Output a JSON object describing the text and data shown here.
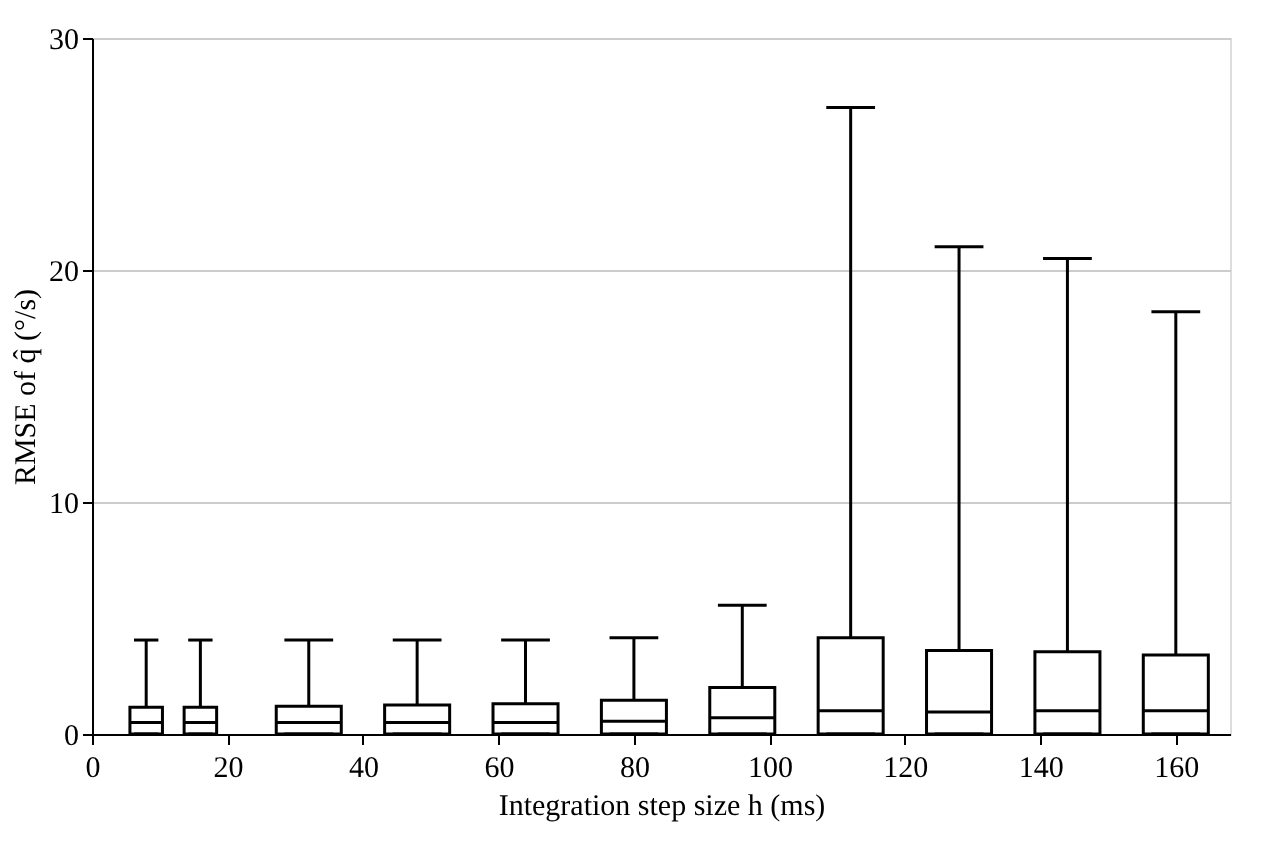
{
  "chart_data": {
    "type": "box",
    "xlabel": "Integration step size h (ms)",
    "ylabel": "RMSE of q̂ (°/s)",
    "x": [
      8,
      16,
      32,
      48,
      64,
      80,
      96,
      112,
      128,
      144,
      160
    ],
    "boxes": [
      {
        "low": 0,
        "q1": 0,
        "median": 0.5,
        "q3": 1.15,
        "high": 4.05
      },
      {
        "low": 0,
        "q1": 0,
        "median": 0.5,
        "q3": 1.15,
        "high": 4.05
      },
      {
        "low": 0,
        "q1": 0,
        "median": 0.5,
        "q3": 1.2,
        "high": 4.05
      },
      {
        "low": 0,
        "q1": 0,
        "median": 0.5,
        "q3": 1.25,
        "high": 4.05
      },
      {
        "low": 0,
        "q1": 0,
        "median": 0.5,
        "q3": 1.3,
        "high": 4.05
      },
      {
        "low": 0,
        "q1": 0,
        "median": 0.55,
        "q3": 1.45,
        "high": 4.15
      },
      {
        "low": 0,
        "q1": 0,
        "median": 0.7,
        "q3": 2.0,
        "high": 5.55
      },
      {
        "low": 0,
        "q1": 0,
        "median": 1.0,
        "q3": 4.15,
        "high": 27.0
      },
      {
        "low": 0,
        "q1": 0,
        "median": 0.95,
        "q3": 3.6,
        "high": 21.0
      },
      {
        "low": 0,
        "q1": 0,
        "median": 1.0,
        "q3": 3.55,
        "high": 20.5
      },
      {
        "low": 0,
        "q1": 0,
        "median": 1.0,
        "q3": 3.4,
        "high": 18.2
      }
    ],
    "color": "#000000",
    "xlim": [
      0,
      168
    ],
    "xticks": [
      0,
      20,
      40,
      60,
      80,
      100,
      120,
      140,
      160
    ],
    "ylim": [
      0,
      30
    ],
    "yticks": [
      0,
      10,
      20,
      30
    ],
    "grid": "y"
  }
}
